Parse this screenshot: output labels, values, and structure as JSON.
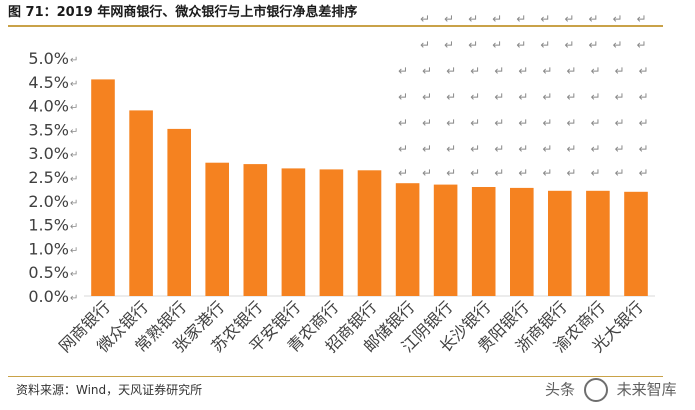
{
  "header": {
    "title": "图 71：2019 年网商银行、微众银行与上市银行净息差排序"
  },
  "footer": {
    "source": "资料来源：Wind，天风证券研究所",
    "watermark_left": "头条",
    "watermark_right": "未来智库"
  },
  "theme": {
    "bar_color": "#f58220",
    "axis_color": "#d9d9d9",
    "paragraph_mark_color": "#8a8a8a"
  },
  "chart_data": {
    "type": "bar",
    "title": "",
    "xlabel": "",
    "ylabel": "",
    "ylim": [
      0,
      0.05
    ],
    "ytick_labels": [
      "0.0%",
      "0.5%",
      "1.0%",
      "1.5%",
      "2.0%",
      "2.5%",
      "3.0%",
      "3.5%",
      "4.0%",
      "4.5%",
      "5.0%"
    ],
    "categories": [
      "网商银行",
      "微众银行",
      "常熟银行",
      "张家港行",
      "苏农银行",
      "平安银行",
      "青农商行",
      "招商银行",
      "邮储银行",
      "江阴银行",
      "长沙银行",
      "贵阳银行",
      "浙商银行",
      "渝农商行",
      "光大银行"
    ],
    "values": [
      0.0455,
      0.039,
      0.0351,
      0.028,
      0.0277,
      0.0268,
      0.0266,
      0.0264,
      0.0237,
      0.0234,
      0.0229,
      0.0227,
      0.0221,
      0.0221,
      0.0219
    ],
    "grid": false,
    "legend": "none"
  }
}
